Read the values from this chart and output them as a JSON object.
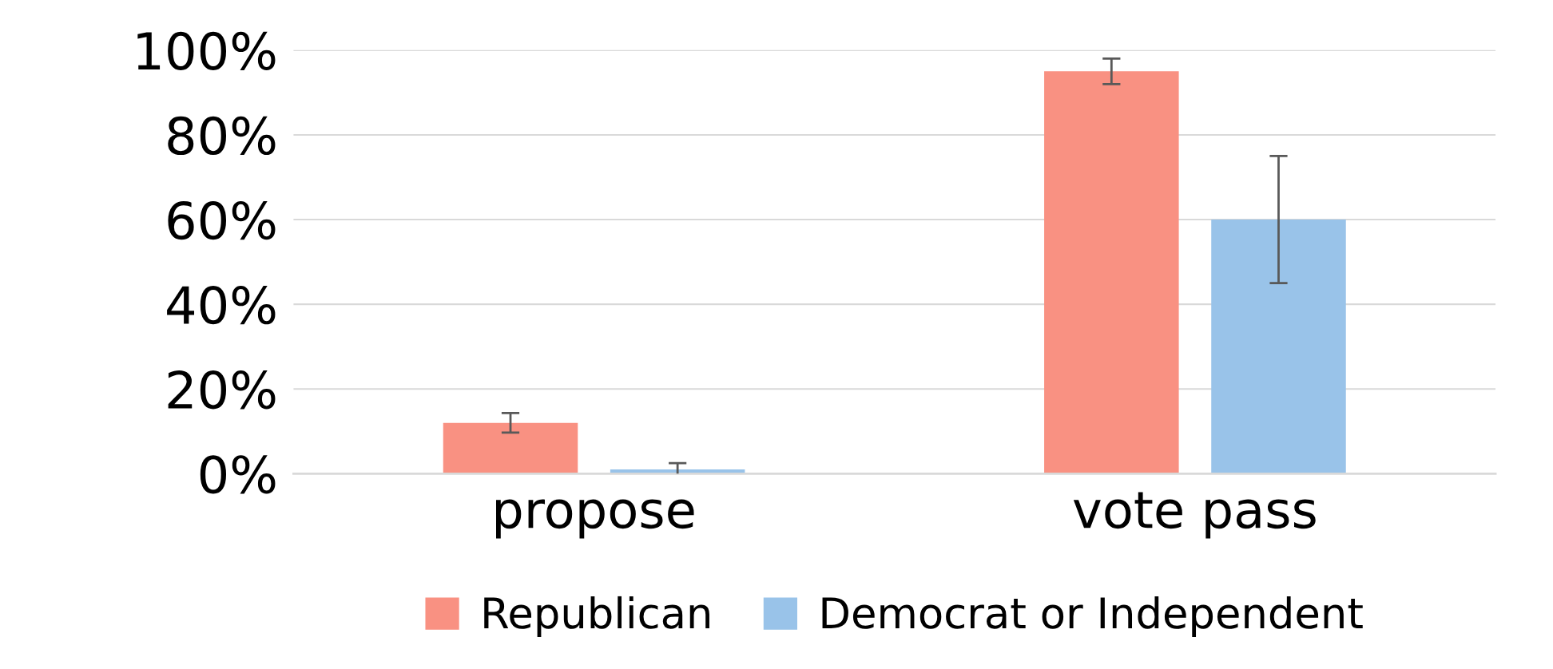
{
  "chart_data": {
    "type": "bar",
    "categories": [
      "propose",
      "vote pass"
    ],
    "series": [
      {
        "name": "Republican",
        "color": "#f99182",
        "values": [
          12,
          95
        ],
        "errors": [
          2.3,
          3
        ]
      },
      {
        "name": "Democrat or Independent",
        "color": "#99c3e9",
        "values": [
          1,
          60
        ],
        "errors": [
          1.5,
          15
        ]
      }
    ],
    "ylim": [
      0,
      100
    ],
    "yticks": [
      {
        "value": 0,
        "label": "0%"
      },
      {
        "value": 20,
        "label": "20%"
      },
      {
        "value": 40,
        "label": "40%"
      },
      {
        "value": 60,
        "label": "60%"
      },
      {
        "value": 80,
        "label": "80%"
      },
      {
        "value": 100,
        "label": "100%"
      }
    ],
    "grid": "y",
    "legend": "bottom"
  }
}
